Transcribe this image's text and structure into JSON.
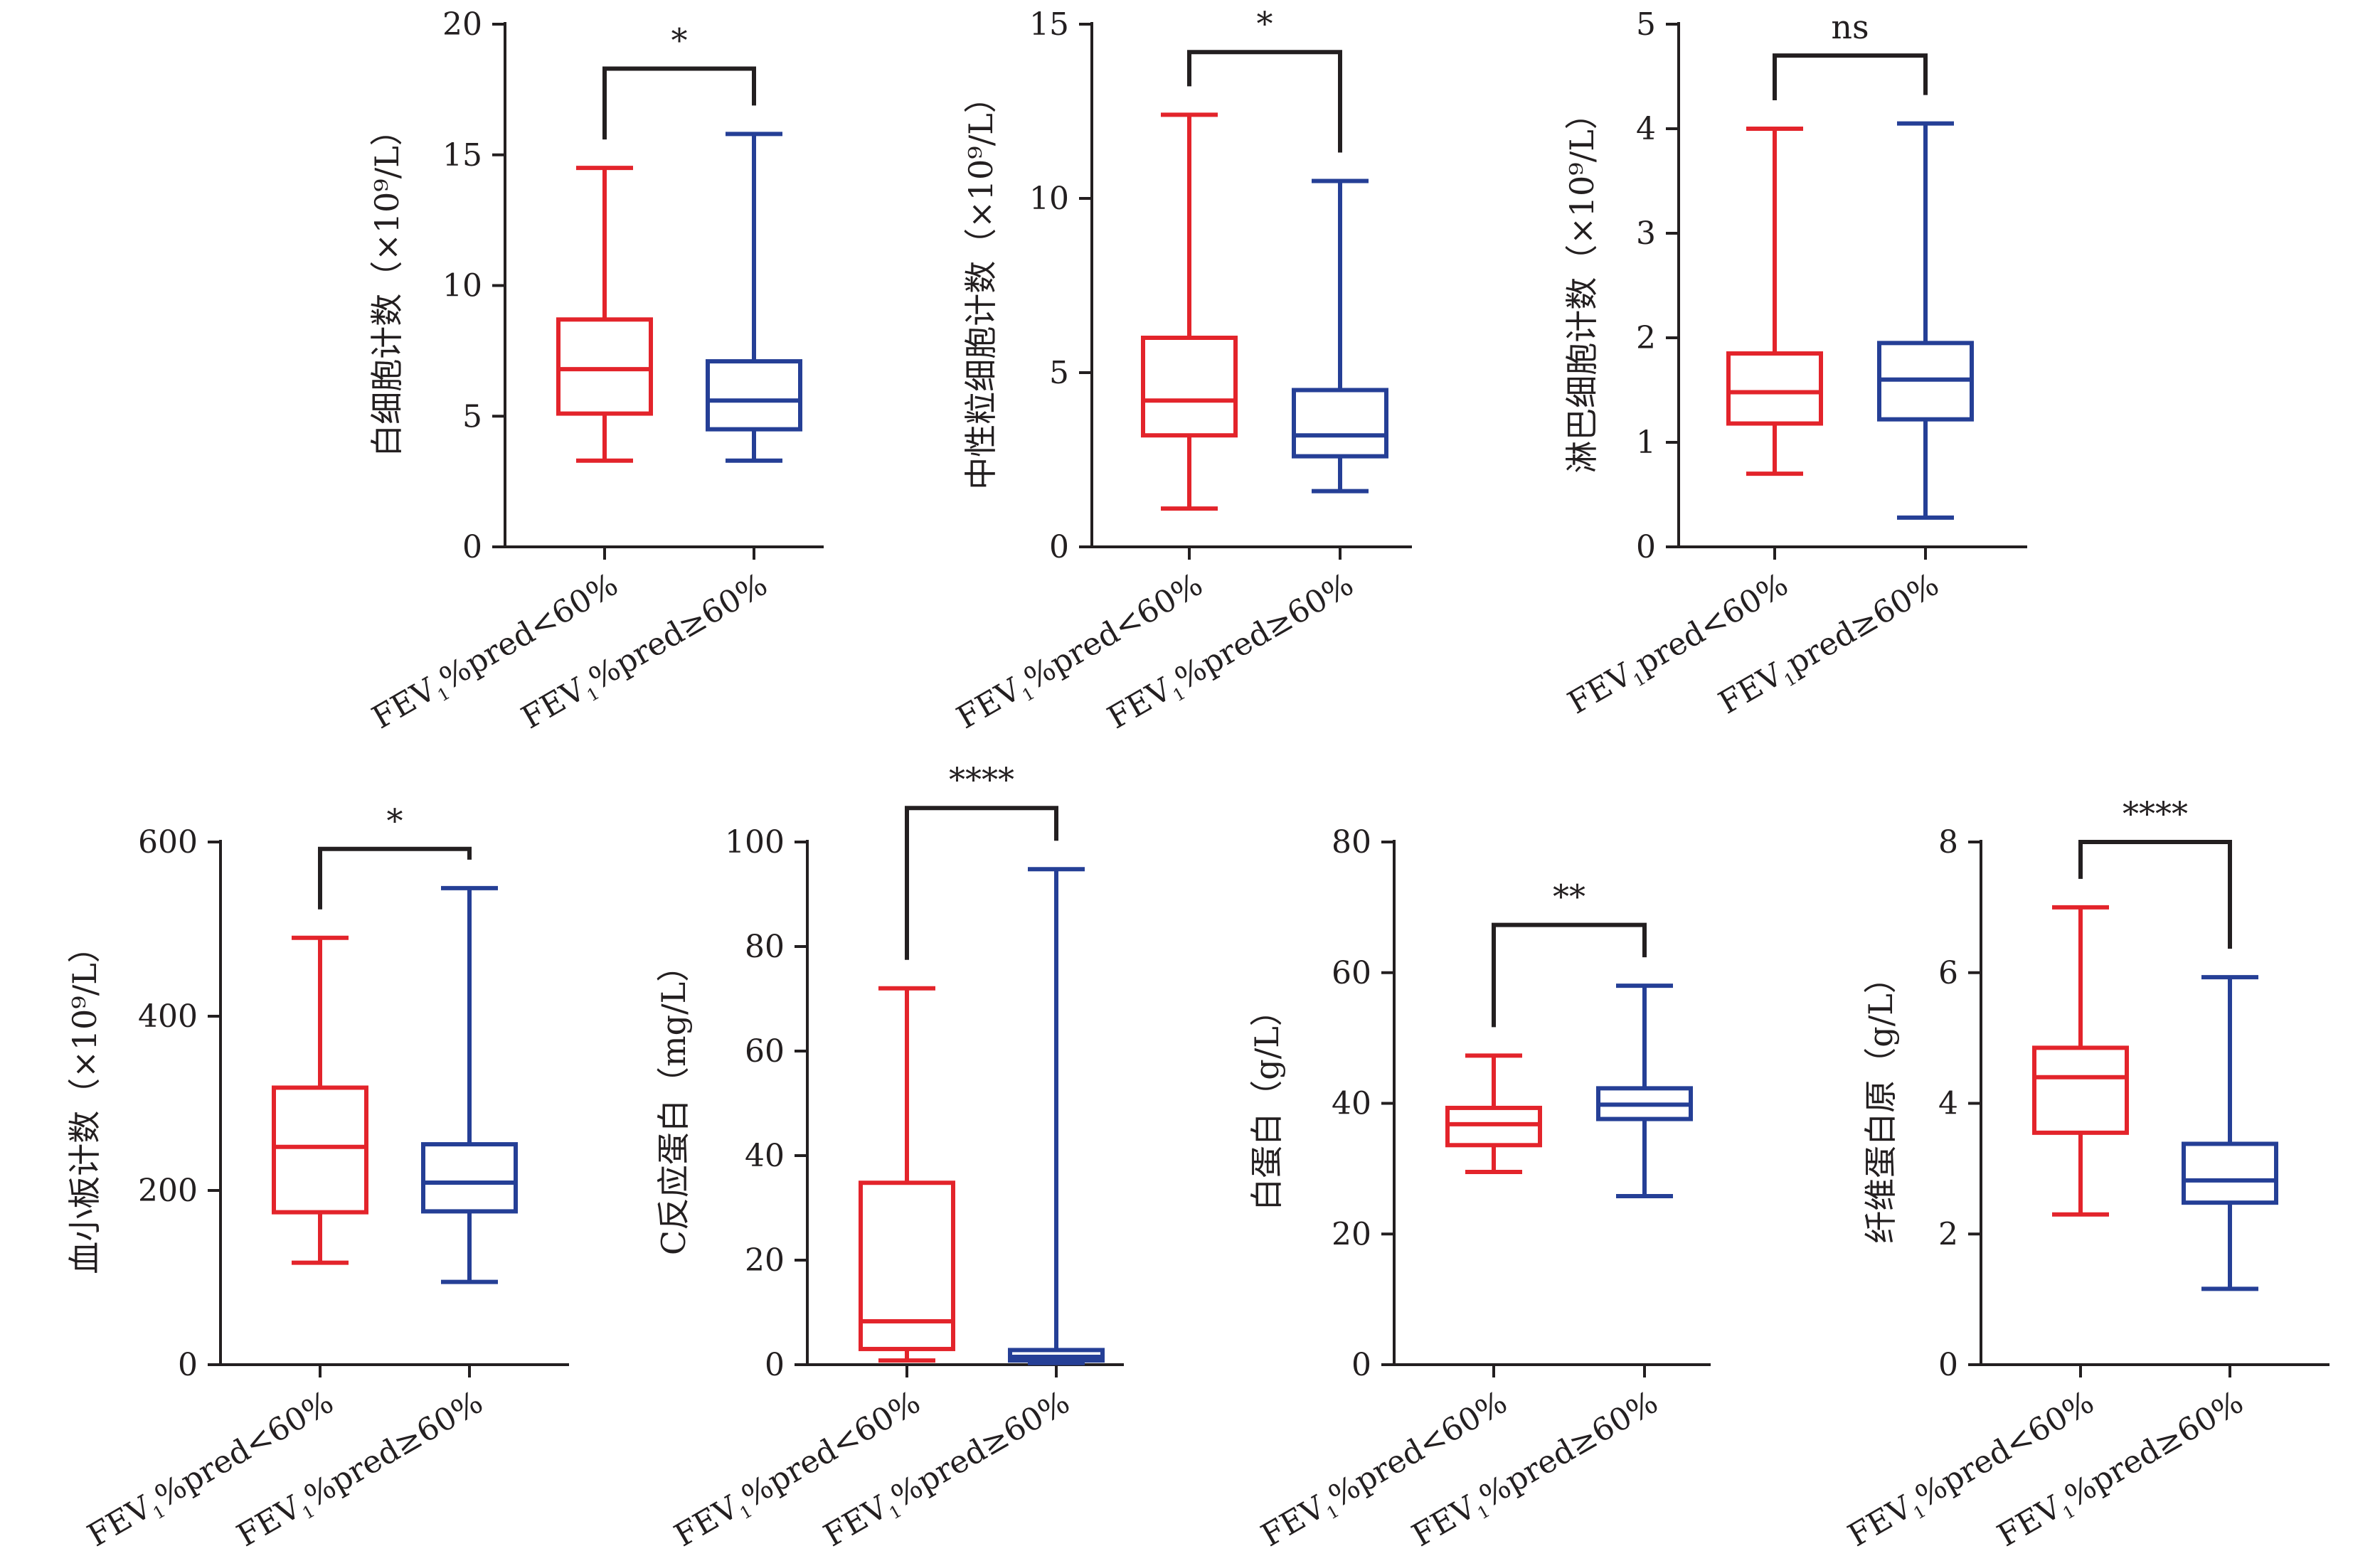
{
  "colors": {
    "group1": "#e3242b",
    "group2": "#253f96",
    "axis": "#231f20"
  },
  "chart_data": [
    {
      "type": "box",
      "ylabel": "白细胞计数（×10⁹/L）",
      "ylim": [
        0,
        20
      ],
      "yticks": [
        0,
        5,
        10,
        15,
        20
      ],
      "tick_labels": [
        "0",
        "5",
        "10",
        "15",
        "20"
      ],
      "categories": [
        {
          "pre": "FEV",
          "sub": "1",
          "post": "%pred<60%"
        },
        {
          "pre": "FEV",
          "sub": "1",
          "post": "%pred≥60%"
        }
      ],
      "boxes": [
        {
          "min": 3.3,
          "q1": 5.1,
          "median": 6.8,
          "q3": 8.7,
          "max": 14.5
        },
        {
          "min": 3.3,
          "q1": 4.5,
          "median": 5.6,
          "q3": 7.1,
          "max": 15.8
        }
      ],
      "significance": "*",
      "bracket_y": 18.3
    },
    {
      "type": "box",
      "ylabel": "中性粒细胞计数（×10⁹/L）",
      "ylim": [
        0,
        15
      ],
      "yticks": [
        0,
        5,
        10,
        15
      ],
      "tick_labels": [
        "0",
        "5",
        "10",
        "15"
      ],
      "categories": [
        {
          "pre": "FEV",
          "sub": "1",
          "post": "%pred<60%"
        },
        {
          "pre": "FEV",
          "sub": "1",
          "post": "%pred≥60%"
        }
      ],
      "boxes": [
        {
          "min": 1.1,
          "q1": 3.2,
          "median": 4.2,
          "q3": 6.0,
          "max": 12.4
        },
        {
          "min": 1.6,
          "q1": 2.6,
          "median": 3.2,
          "q3": 4.5,
          "max": 10.5
        }
      ],
      "significance": "*",
      "bracket_y": 14.2
    },
    {
      "type": "box",
      "ylabel": "淋巴细胞计数（×10⁹/L）",
      "ylim": [
        0,
        5
      ],
      "yticks": [
        0,
        1,
        2,
        3,
        4,
        5
      ],
      "tick_labels": [
        "0",
        "1",
        "2",
        "3",
        "4",
        "5"
      ],
      "categories": [
        {
          "pre": "FEV",
          "sub": "1",
          "post": "pred<60%"
        },
        {
          "pre": "FEV",
          "sub": "1",
          "post": "pred≥60%"
        }
      ],
      "boxes": [
        {
          "min": 0.7,
          "q1": 1.18,
          "median": 1.48,
          "q3": 1.85,
          "max": 4.0
        },
        {
          "min": 0.28,
          "q1": 1.22,
          "median": 1.6,
          "q3": 1.95,
          "max": 4.05
        }
      ],
      "significance": "ns",
      "bracket_y": 4.7
    },
    {
      "type": "box",
      "ylabel": "血小板计数（×10⁹/L）",
      "ylim": [
        0,
        600
      ],
      "yticks": [
        0,
        200,
        400,
        600
      ],
      "tick_labels": [
        "0",
        "200",
        "400",
        "600"
      ],
      "categories": [
        {
          "pre": "FEV",
          "sub": "1",
          "post": "%pred<60%"
        },
        {
          "pre": "FEV",
          "sub": "1",
          "post": "%pred≥60%"
        }
      ],
      "boxes": [
        {
          "min": 117,
          "q1": 175,
          "median": 250,
          "q3": 318,
          "max": 490
        },
        {
          "min": 95,
          "q1": 176,
          "median": 209,
          "q3": 253,
          "max": 547
        }
      ],
      "significance": "*",
      "bracket_y": 592
    },
    {
      "type": "box",
      "ylabel": "C反应蛋白（mg/L）",
      "ylim": [
        0,
        100
      ],
      "yticks": [
        0,
        20,
        40,
        60,
        80,
        100
      ],
      "tick_labels": [
        "0",
        "20",
        "40",
        "60",
        "80",
        "100"
      ],
      "categories": [
        {
          "pre": "FEV",
          "sub": "1",
          "post": "%pred<60%"
        },
        {
          "pre": "FEV",
          "sub": "1",
          "post": "%pred≥60%"
        }
      ],
      "boxes": [
        {
          "min": 0.8,
          "q1": 3.0,
          "median": 8.3,
          "q3": 34.8,
          "max": 72.0
        },
        {
          "min": 0.3,
          "q1": 0.8,
          "median": 1.5,
          "q3": 2.8,
          "max": 94.8
        }
      ],
      "significance": "****",
      "bracket_y": 106.5
    },
    {
      "type": "box",
      "ylabel": "白蛋白（g/L）",
      "ylim": [
        0,
        80
      ],
      "yticks": [
        0,
        20,
        40,
        60,
        80
      ],
      "tick_labels": [
        "0",
        "20",
        "40",
        "60",
        "80"
      ],
      "categories": [
        {
          "pre": "FEV",
          "sub": "1",
          "post": "%pred<60%"
        },
        {
          "pre": "FEV",
          "sub": "1",
          "post": "%pred≥60%"
        }
      ],
      "boxes": [
        {
          "min": 29.5,
          "q1": 33.6,
          "median": 36.8,
          "q3": 39.3,
          "max": 47.3
        },
        {
          "min": 25.8,
          "q1": 37.6,
          "median": 39.8,
          "q3": 42.3,
          "max": 58.0
        }
      ],
      "significance": "**",
      "bracket_y": 67.3
    },
    {
      "type": "box",
      "ylabel": "纤维蛋白原（g/L）",
      "ylim": [
        0,
        8
      ],
      "yticks": [
        0,
        2,
        4,
        6,
        8
      ],
      "tick_labels": [
        "0",
        "2",
        "4",
        "6",
        "8"
      ],
      "categories": [
        {
          "pre": "FEV",
          "sub": "1",
          "post": "%pred<60%"
        },
        {
          "pre": "FEV",
          "sub": "1",
          "post": "%pred≥60%"
        }
      ],
      "boxes": [
        {
          "min": 2.3,
          "q1": 3.55,
          "median": 4.4,
          "q3": 4.85,
          "max": 7.0
        },
        {
          "min": 1.16,
          "q1": 2.48,
          "median": 2.82,
          "q3": 3.38,
          "max": 5.93
        }
      ],
      "significance": "****",
      "bracket_y": 8.0
    }
  ]
}
